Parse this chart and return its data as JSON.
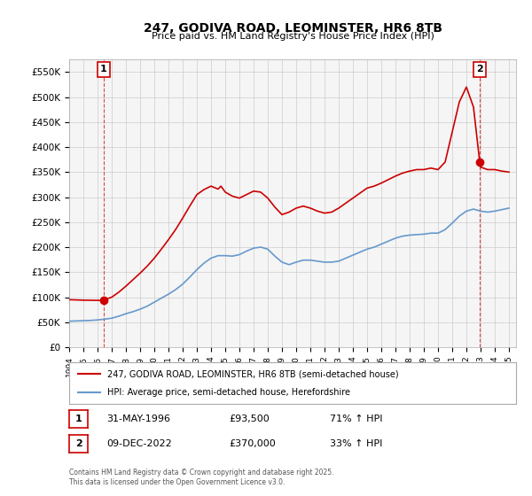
{
  "title": "247, GODIVA ROAD, LEOMINSTER, HR6 8TB",
  "subtitle": "Price paid vs. HM Land Registry's House Price Index (HPI)",
  "ylim": [
    0,
    575000
  ],
  "yticks": [
    0,
    50000,
    100000,
    150000,
    200000,
    250000,
    300000,
    350000,
    400000,
    450000,
    500000,
    550000
  ],
  "xlim_start": 1994.0,
  "xlim_end": 2025.5,
  "red_color": "#cc0000",
  "blue_color": "#6699cc",
  "grid_color": "#cccccc",
  "bg_color": "#ffffff",
  "plot_bg_color": "#f5f5f5",
  "legend_label_red": "247, GODIVA ROAD, LEOMINSTER, HR6 8TB (semi-detached house)",
  "legend_label_blue": "HPI: Average price, semi-detached house, Herefordshire",
  "point1_label": "1",
  "point1_date": "31-MAY-1996",
  "point1_price": "£93,500",
  "point1_hpi": "71% ↑ HPI",
  "point1_x": 1996.42,
  "point1_y": 93500,
  "point2_label": "2",
  "point2_date": "09-DEC-2022",
  "point2_price": "£370,000",
  "point2_hpi": "33% ↑ HPI",
  "point2_x": 2022.94,
  "point2_y": 370000,
  "footnote": "Contains HM Land Registry data © Crown copyright and database right 2025.\nThis data is licensed under the Open Government Licence v3.0.",
  "hpi_blue": {
    "x": [
      1994.0,
      1994.5,
      1995.0,
      1995.5,
      1996.0,
      1996.5,
      1997.0,
      1997.5,
      1998.0,
      1998.5,
      1999.0,
      1999.5,
      2000.0,
      2000.5,
      2001.0,
      2001.5,
      2002.0,
      2002.5,
      2003.0,
      2003.5,
      2004.0,
      2004.5,
      2005.0,
      2005.5,
      2006.0,
      2006.5,
      2007.0,
      2007.5,
      2008.0,
      2008.5,
      2009.0,
      2009.5,
      2010.0,
      2010.5,
      2011.0,
      2011.5,
      2012.0,
      2012.5,
      2013.0,
      2013.5,
      2014.0,
      2014.5,
      2015.0,
      2015.5,
      2016.0,
      2016.5,
      2017.0,
      2017.5,
      2018.0,
      2018.5,
      2019.0,
      2019.5,
      2020.0,
      2020.5,
      2021.0,
      2021.5,
      2022.0,
      2022.5,
      2023.0,
      2023.5,
      2024.0,
      2024.5,
      2025.0
    ],
    "y": [
      52000,
      52500,
      53000,
      53500,
      54500,
      56000,
      58000,
      62000,
      67000,
      71000,
      76000,
      82000,
      90000,
      98000,
      106000,
      115000,
      126000,
      140000,
      155000,
      168000,
      178000,
      183000,
      183000,
      182000,
      185000,
      192000,
      198000,
      200000,
      196000,
      182000,
      170000,
      165000,
      170000,
      174000,
      174000,
      172000,
      170000,
      170000,
      172000,
      178000,
      184000,
      190000,
      196000,
      200000,
      206000,
      212000,
      218000,
      222000,
      224000,
      225000,
      226000,
      228000,
      228000,
      235000,
      248000,
      262000,
      272000,
      276000,
      272000,
      270000,
      272000,
      275000,
      278000
    ]
  },
  "price_red": {
    "x": [
      1994.0,
      1994.5,
      1995.0,
      1995.5,
      1996.0,
      1996.42,
      1996.5,
      1997.0,
      1997.5,
      1998.0,
      1998.5,
      1999.0,
      1999.5,
      2000.0,
      2000.5,
      2001.0,
      2001.5,
      2002.0,
      2002.5,
      2003.0,
      2003.5,
      2004.0,
      2004.5,
      2004.7,
      2005.0,
      2005.5,
      2006.0,
      2006.5,
      2007.0,
      2007.5,
      2008.0,
      2008.5,
      2009.0,
      2009.5,
      2010.0,
      2010.5,
      2011.0,
      2011.5,
      2012.0,
      2012.5,
      2013.0,
      2013.5,
      2014.0,
      2014.5,
      2015.0,
      2015.5,
      2016.0,
      2016.5,
      2017.0,
      2017.5,
      2018.0,
      2018.5,
      2019.0,
      2019.5,
      2020.0,
      2020.5,
      2021.0,
      2021.5,
      2022.0,
      2022.5,
      2022.94,
      2023.0,
      2023.5,
      2024.0,
      2024.5,
      2025.0
    ],
    "y": [
      95000,
      94500,
      94000,
      93800,
      93600,
      93500,
      95000,
      100000,
      110000,
      122000,
      135000,
      148000,
      162000,
      178000,
      196000,
      215000,
      235000,
      258000,
      282000,
      305000,
      315000,
      322000,
      316000,
      322000,
      310000,
      302000,
      298000,
      305000,
      312000,
      310000,
      298000,
      280000,
      265000,
      270000,
      278000,
      282000,
      278000,
      272000,
      268000,
      270000,
      278000,
      288000,
      298000,
      308000,
      318000,
      322000,
      328000,
      335000,
      342000,
      348000,
      352000,
      355000,
      355000,
      358000,
      355000,
      370000,
      430000,
      490000,
      520000,
      480000,
      370000,
      360000,
      355000,
      355000,
      352000,
      350000
    ]
  }
}
